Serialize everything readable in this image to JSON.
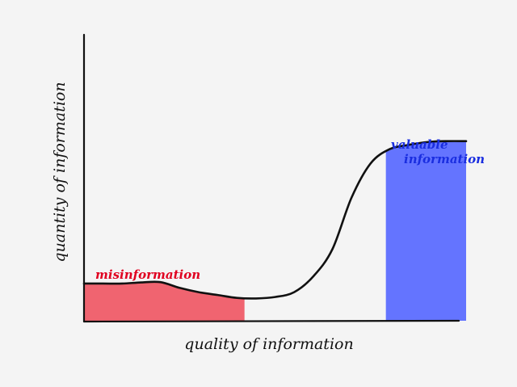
{
  "chart_data": {
    "type": "area",
    "xlabel": "quality of information",
    "ylabel": "quantity of information",
    "grid": false,
    "legend": "none",
    "curve": {
      "x": [
        0,
        0.05,
        0.1,
        0.15,
        0.2,
        0.25,
        0.3,
        0.35,
        0.4,
        0.45,
        0.5,
        0.55,
        0.6,
        0.65,
        0.7,
        0.75,
        0.8,
        0.85,
        0.9,
        0.95,
        1.0
      ],
      "y": [
        0.13,
        0.13,
        0.13,
        0.134,
        0.135,
        0.115,
        0.1,
        0.09,
        0.08,
        0.078,
        0.083,
        0.1,
        0.155,
        0.25,
        0.43,
        0.55,
        0.6,
        0.615,
        0.625,
        0.628,
        0.628
      ]
    },
    "regions": [
      {
        "label": "misinformation",
        "x_range": [
          0,
          0.42
        ],
        "color": "#f06470"
      },
      {
        "label": "valuable information",
        "x_range": [
          0.79,
          1.0
        ],
        "color": "#6474ff"
      }
    ],
    "annotation_colors": {
      "misinformation": "#e00020",
      "valuable": "#1a2ee0"
    },
    "annotations": {
      "misinformation": "misinformation",
      "valuable_line1": "valuable",
      "valuable_line2": "information"
    }
  }
}
